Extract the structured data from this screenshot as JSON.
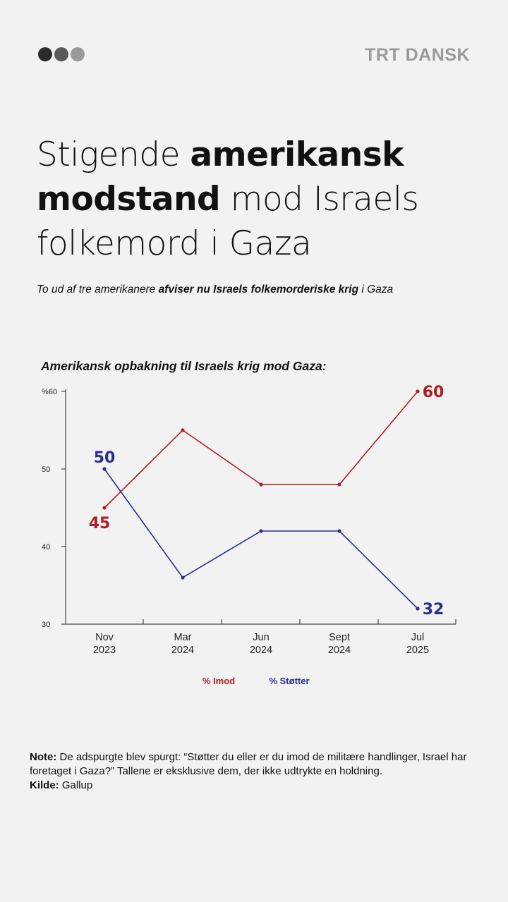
{
  "brand": {
    "name": "TRT DANSK",
    "dot_colors": [
      "#2b2b2b",
      "#5a5a5a",
      "#9a9a9a"
    ]
  },
  "headline": {
    "part1": "Stigende ",
    "bold1": "amerikansk modstand",
    "part2": " mod Israels folkemord i Gaza"
  },
  "subtitle": {
    "part1": "To ud af tre amerikanere ",
    "bold": "afviser nu Israels folkemorderiske krig",
    "part2": " i Gaza"
  },
  "chart_title": "Amerikansk opbakning til Israels krig mod Gaza:",
  "chart_data": {
    "type": "line",
    "categories": [
      "Nov\n2023",
      "Mar\n2024",
      "Jun\n2024",
      "Sept\n2024",
      "Jul\n2025"
    ],
    "series": [
      {
        "name": "% Imod",
        "values": [
          45,
          55,
          48,
          48,
          60
        ],
        "color": "#b01e23",
        "labeled": [
          0,
          4
        ]
      },
      {
        "name": "% Støtter",
        "values": [
          50,
          36,
          42,
          42,
          32
        ],
        "color": "#2b2e8f",
        "labeled": [
          0,
          4
        ]
      }
    ],
    "yticks": [
      30,
      40,
      50,
      60
    ],
    "ytick_labels": [
      "30",
      "40",
      "50",
      "%60"
    ],
    "ylim": [
      30,
      60
    ],
    "grid": false,
    "legend": "bottom-center"
  },
  "note": {
    "label": "Note:",
    "text": " De adspurgte blev spurgt: “Støtter du eller er du imod de militære handlinger, Israel har foretaget i Gaza?” Tallene er eksklusive dem, der ikke udtrykte en holdning.",
    "source_label": "Kilde:",
    "source": " Gallup"
  }
}
